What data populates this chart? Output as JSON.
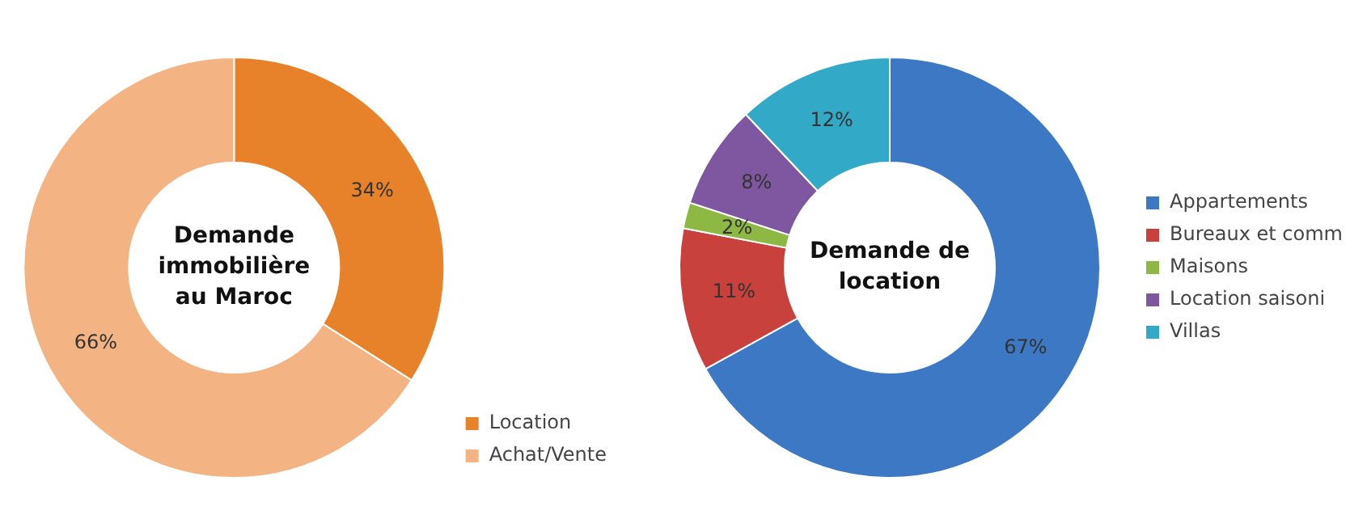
{
  "chart_data": [
    {
      "type": "donut",
      "title": "Demande immobilière au Maroc",
      "categories": [
        "Location",
        "Achat/Vente"
      ],
      "values": [
        34,
        66
      ],
      "value_labels": [
        "34%",
        "66%"
      ],
      "colors": [
        "#e8822a",
        "#f3b383"
      ],
      "legend": "bottom right"
    },
    {
      "type": "donut",
      "title": "Demande de location",
      "categories": [
        "Appartements",
        "Bureaux et comm",
        "Maisons",
        "Location saisoni",
        "Villas"
      ],
      "values": [
        67,
        11,
        2,
        8,
        12
      ],
      "value_labels": [
        "67%",
        "11%",
        "2%",
        "8%",
        "12%"
      ],
      "colors": [
        "#3c78c4",
        "#c9413c",
        "#8db844",
        "#7f56a0",
        "#33a9c8"
      ],
      "legend": "right"
    }
  ]
}
